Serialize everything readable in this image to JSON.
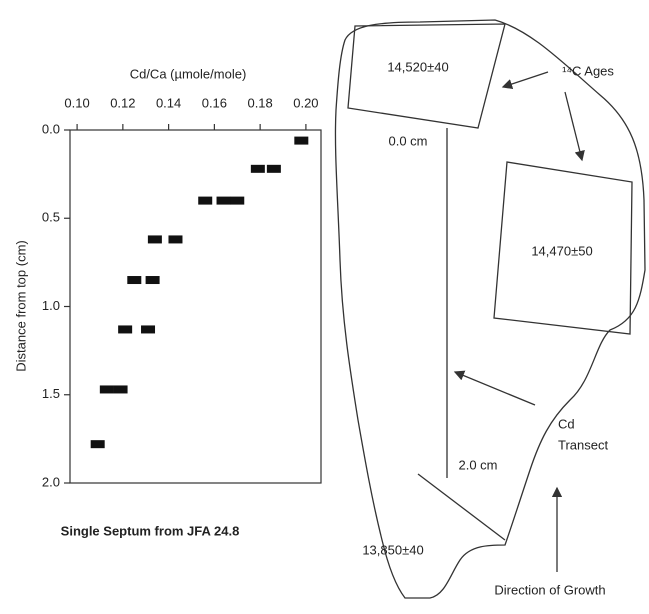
{
  "chart_data": {
    "type": "scatter",
    "title": "Single Septum from JFA 24.8",
    "x_label": "Cd/Ca (µmole/mole)",
    "y_label": "Distance from top (cm)",
    "x": [
      0.198,
      0.179,
      0.186,
      0.156,
      0.164,
      0.17,
      0.134,
      0.143,
      0.125,
      0.133,
      0.121,
      0.131,
      0.113,
      0.119,
      0.109
    ],
    "values": [
      0.06,
      0.22,
      0.22,
      0.4,
      0.4,
      0.4,
      0.62,
      0.62,
      0.85,
      0.85,
      1.13,
      1.13,
      1.47,
      1.47,
      1.78
    ],
    "color": "#111111",
    "xlim": [
      0.0969,
      0.2066
    ],
    "xticks": [
      {
        "value": 0.1,
        "label": "0.10"
      },
      {
        "value": 0.12,
        "label": "0.12"
      },
      {
        "value": 0.14,
        "label": "0.14"
      },
      {
        "value": 0.16,
        "label": "0.16"
      },
      {
        "value": 0.18,
        "label": "0.18"
      },
      {
        "value": 0.2,
        "label": "0.20"
      }
    ],
    "ylim": [
      0,
      2
    ],
    "yticks": [
      {
        "value": 0,
        "label": "0.0"
      },
      0.5,
      {
        "value": 1,
        "label": "1.0"
      },
      1.5,
      {
        "value": 2,
        "label": "2.0"
      }
    ],
    "y_inverted": true
  },
  "diagram": {
    "labels": [
      "14,520±40",
      "¹⁴C Ages",
      "0.0 cm",
      "14,470±50",
      "Cd",
      "Transect",
      "2.0 cm",
      "13,850±40",
      "Direction of Growth"
    ]
  }
}
